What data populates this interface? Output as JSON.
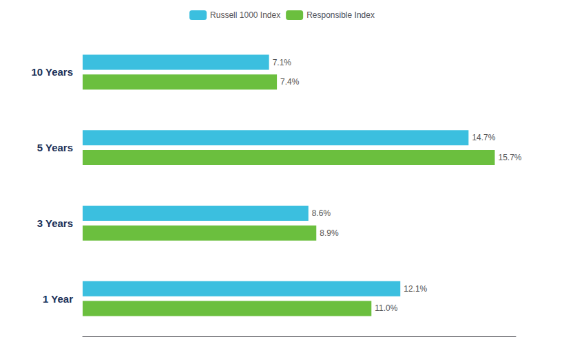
{
  "chart_data": {
    "type": "bar",
    "orientation": "horizontal",
    "categories": [
      "10 Years",
      "5 Years",
      "3 Years",
      "1 Year"
    ],
    "series": [
      {
        "name": "Russell 1000 Index",
        "color": "#3bbfdf",
        "values": [
          7.1,
          14.7,
          8.6,
          12.1
        ],
        "value_labels": [
          "7.1%",
          "14.7%",
          "8.6%",
          "12.1%"
        ]
      },
      {
        "name": "Responsible Index",
        "color": "#6bbf3e",
        "values": [
          7.4,
          15.7,
          8.9,
          11.0
        ],
        "value_labels": [
          "7.4%",
          "15.7%",
          "8.9%",
          "11.0%"
        ]
      }
    ],
    "xlim": [
      0,
      16.5
    ],
    "grid": false,
    "data_labels": true,
    "tick_labels": "y",
    "legend": "top"
  }
}
